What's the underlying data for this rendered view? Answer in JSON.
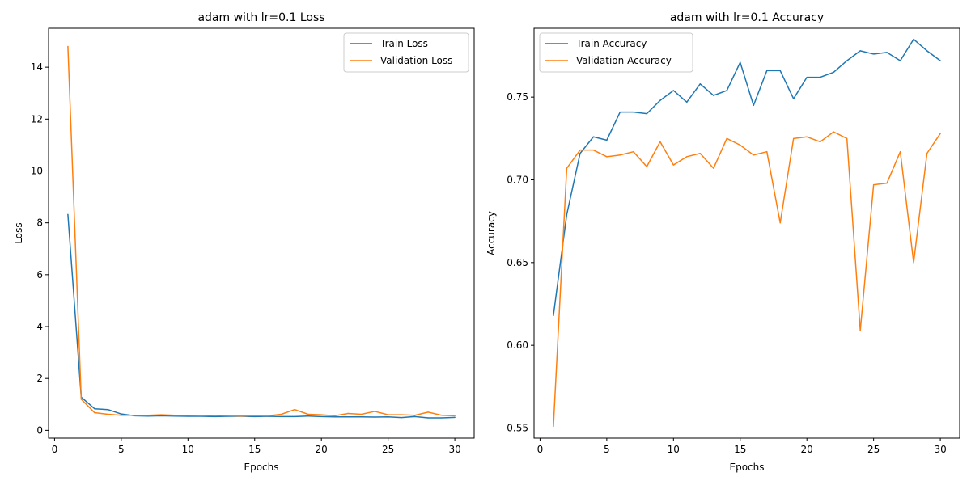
{
  "chart_data": [
    {
      "type": "line",
      "title": "adam with lr=0.1 Loss",
      "xlabel": "Epochs",
      "ylabel": "Loss",
      "xlim": [
        -0.45,
        31.45
      ],
      "ylim": [
        -0.3,
        15.5
      ],
      "xticks": [
        0,
        5,
        10,
        15,
        20,
        25,
        30
      ],
      "yticks": [
        0,
        2,
        4,
        6,
        8,
        10,
        12,
        14
      ],
      "ytick_decimals": 0,
      "grid": false,
      "legend_position": "upper-right",
      "x": [
        1,
        2,
        3,
        4,
        5,
        6,
        7,
        8,
        9,
        10,
        11,
        12,
        13,
        14,
        15,
        16,
        17,
        18,
        19,
        20,
        21,
        22,
        23,
        24,
        25,
        26,
        27,
        28,
        29,
        30
      ],
      "series": [
        {
          "name": "Train Loss",
          "color": "#1f77b4",
          "values": [
            8.32,
            1.28,
            0.83,
            0.8,
            0.63,
            0.56,
            0.55,
            0.56,
            0.55,
            0.54,
            0.54,
            0.53,
            0.54,
            0.54,
            0.53,
            0.54,
            0.53,
            0.53,
            0.55,
            0.53,
            0.52,
            0.52,
            0.52,
            0.51,
            0.52,
            0.49,
            0.53,
            0.48,
            0.48,
            0.5
          ]
        },
        {
          "name": "Validation Loss",
          "color": "#ff7f0e",
          "values": [
            14.8,
            1.2,
            0.68,
            0.62,
            0.58,
            0.58,
            0.58,
            0.6,
            0.58,
            0.58,
            0.57,
            0.58,
            0.57,
            0.55,
            0.57,
            0.56,
            0.62,
            0.8,
            0.62,
            0.6,
            0.56,
            0.65,
            0.62,
            0.73,
            0.6,
            0.6,
            0.58,
            0.7,
            0.58,
            0.56
          ]
        }
      ]
    },
    {
      "type": "line",
      "title": "adam with lr=0.1 Accuracy",
      "xlabel": "Epochs",
      "ylabel": "Accuracy",
      "xlim": [
        -0.45,
        31.45
      ],
      "ylim": [
        0.5439,
        0.7916
      ],
      "xticks": [
        0,
        5,
        10,
        15,
        20,
        25,
        30
      ],
      "yticks": [
        0.55,
        0.6,
        0.65,
        0.7,
        0.75
      ],
      "ytick_decimals": 2,
      "grid": false,
      "legend_position": "upper-left",
      "x": [
        1,
        2,
        3,
        4,
        5,
        6,
        7,
        8,
        9,
        10,
        11,
        12,
        13,
        14,
        15,
        16,
        17,
        18,
        19,
        20,
        21,
        22,
        23,
        24,
        25,
        26,
        27,
        28,
        29,
        30
      ],
      "series": [
        {
          "name": "Train Accuracy",
          "color": "#1f77b4",
          "values": [
            0.618,
            0.679,
            0.716,
            0.726,
            0.724,
            0.741,
            0.741,
            0.74,
            0.748,
            0.754,
            0.747,
            0.758,
            0.751,
            0.754,
            0.771,
            0.745,
            0.766,
            0.766,
            0.749,
            0.762,
            0.762,
            0.765,
            0.772,
            0.778,
            0.776,
            0.777,
            0.772,
            0.785,
            0.778,
            0.772
          ]
        },
        {
          "name": "Validation Accuracy",
          "color": "#ff7f0e",
          "values": [
            0.551,
            0.707,
            0.718,
            0.718,
            0.714,
            0.715,
            0.717,
            0.708,
            0.723,
            0.709,
            0.714,
            0.716,
            0.707,
            0.725,
            0.721,
            0.715,
            0.717,
            0.674,
            0.725,
            0.726,
            0.723,
            0.729,
            0.725,
            0.609,
            0.697,
            0.698,
            0.717,
            0.65,
            0.716,
            0.728
          ]
        }
      ]
    }
  ]
}
